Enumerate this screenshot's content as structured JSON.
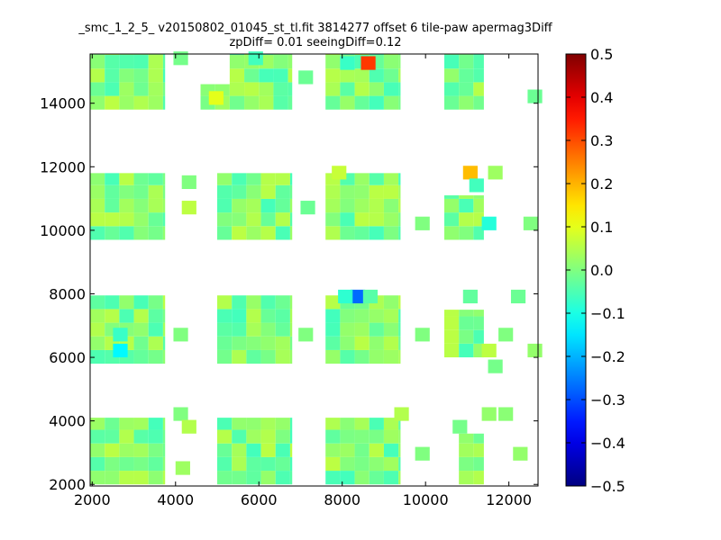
{
  "chart_data": {
    "type": "heatmap",
    "title": "_smc_1_2_5_ v20150802_01045_st_tl.fit 3814277 offset 6 tile-paw apermag3Diff",
    "subtitle": "zpDiff= 0.01 seeingDiff=0.12",
    "xlabel": "",
    "ylabel": "",
    "xlim": [
      1950,
      12700
    ],
    "ylim": [
      1950,
      15550
    ],
    "xticks": [
      2000,
      4000,
      6000,
      8000,
      10000,
      12000
    ],
    "yticks": [
      2000,
      4000,
      6000,
      8000,
      10000,
      12000,
      14000
    ],
    "colormap": "jet",
    "colorbar": {
      "range": [
        -0.5,
        0.5
      ],
      "ticks": [
        "0.5",
        "0.4",
        "0.3",
        "0.2",
        "0.1",
        "0.0",
        "−0.1",
        "−0.2",
        "−0.3",
        "−0.4",
        "−0.5"
      ]
    },
    "grid": false,
    "cell_size": [
      350,
      430
    ],
    "base_value": 0.0,
    "regions": [
      {
        "x": [
          1950,
          3750
        ],
        "y": [
          13800,
          15550
        ]
      },
      {
        "x": [
          4600,
          5300
        ],
        "y": [
          13800,
          14600
        ]
      },
      {
        "x": [
          5300,
          6800
        ],
        "y": [
          13800,
          15550
        ]
      },
      {
        "x": [
          7600,
          9400
        ],
        "y": [
          13800,
          15550
        ]
      },
      {
        "x": [
          10450,
          11400
        ],
        "y": [
          13800,
          15550
        ]
      },
      {
        "x": [
          1950,
          3750
        ],
        "y": [
          9700,
          11800
        ]
      },
      {
        "x": [
          5000,
          6800
        ],
        "y": [
          9700,
          11800
        ]
      },
      {
        "x": [
          7600,
          9400
        ],
        "y": [
          9700,
          11800
        ]
      },
      {
        "x": [
          10450,
          11400
        ],
        "y": [
          9700,
          11100
        ]
      },
      {
        "x": [
          1950,
          3750
        ],
        "y": [
          5800,
          7950
        ]
      },
      {
        "x": [
          5000,
          6800
        ],
        "y": [
          5800,
          7950
        ]
      },
      {
        "x": [
          7600,
          9400
        ],
        "y": [
          5800,
          7950
        ]
      },
      {
        "x": [
          10450,
          11400
        ],
        "y": [
          6000,
          7500
        ]
      },
      {
        "x": [
          1950,
          3750
        ],
        "y": [
          2000,
          4100
        ]
      },
      {
        "x": [
          5000,
          6800
        ],
        "y": [
          2000,
          4100
        ]
      },
      {
        "x": [
          7600,
          9400
        ],
        "y": [
          2000,
          4100
        ]
      },
      {
        "x": [
          10800,
          11400
        ],
        "y": [
          2000,
          3600
        ]
      }
    ],
    "cells": [
      {
        "x": 8450,
        "y": 15050,
        "value": 0.32
      },
      {
        "x": 7950,
        "y": 15050,
        "value": -0.07
      },
      {
        "x": 5750,
        "y": 15200,
        "value": -0.06
      },
      {
        "x": 3950,
        "y": 15200,
        "value": -0.01
      },
      {
        "x": 6950,
        "y": 14600,
        "value": -0.02
      },
      {
        "x": 4800,
        "y": 13950,
        "value": 0.1
      },
      {
        "x": 10900,
        "y": 11600,
        "value": 0.19
      },
      {
        "x": 11500,
        "y": 11600,
        "value": 0.03
      },
      {
        "x": 11050,
        "y": 11200,
        "value": -0.06
      },
      {
        "x": 12450,
        "y": 14000,
        "value": -0.02
      },
      {
        "x": 8200,
        "y": 7700,
        "value": -0.27
      },
      {
        "x": 7900,
        "y": 7700,
        "value": -0.08
      },
      {
        "x": 8500,
        "y": 7700,
        "value": -0.04
      },
      {
        "x": 2500,
        "y": 6000,
        "value": -0.13
      },
      {
        "x": 2500,
        "y": 6500,
        "value": -0.07
      },
      {
        "x": 11500,
        "y": 5500,
        "value": -0.01
      },
      {
        "x": 12450,
        "y": 6000,
        "value": 0.02
      },
      {
        "x": 11350,
        "y": 10000,
        "value": -0.09
      },
      {
        "x": 12350,
        "y": 10000,
        "value": 0.0
      },
      {
        "x": 10900,
        "y": 7700,
        "value": -0.03
      },
      {
        "x": 12050,
        "y": 7700,
        "value": -0.02
      },
      {
        "x": 11350,
        "y": 4000,
        "value": 0.02
      },
      {
        "x": 11750,
        "y": 4000,
        "value": 0.01
      },
      {
        "x": 10650,
        "y": 3600,
        "value": -0.01
      },
      {
        "x": 12100,
        "y": 2750,
        "value": 0.02
      },
      {
        "x": 3950,
        "y": 4000,
        "value": 0.0
      },
      {
        "x": 9250,
        "y": 4000,
        "value": 0.05
      },
      {
        "x": 9750,
        "y": 2750,
        "value": 0.0
      },
      {
        "x": 4150,
        "y": 3600,
        "value": 0.05
      },
      {
        "x": 4150,
        "y": 10500,
        "value": 0.06
      },
      {
        "x": 4150,
        "y": 11300,
        "value": 0.0
      },
      {
        "x": 9750,
        "y": 10000,
        "value": 0.0
      },
      {
        "x": 11350,
        "y": 6000,
        "value": 0.06
      },
      {
        "x": 11750,
        "y": 6500,
        "value": 0.0
      },
      {
        "x": 3950,
        "y": 6500,
        "value": 0.0
      },
      {
        "x": 9750,
        "y": 6500,
        "value": 0.0
      },
      {
        "x": 6950,
        "y": 6500,
        "value": 0.0
      },
      {
        "x": 7000,
        "y": 10500,
        "value": -0.02
      },
      {
        "x": 7750,
        "y": 11600,
        "value": 0.07
      },
      {
        "x": 4000,
        "y": 2300,
        "value": 0.03
      }
    ]
  }
}
